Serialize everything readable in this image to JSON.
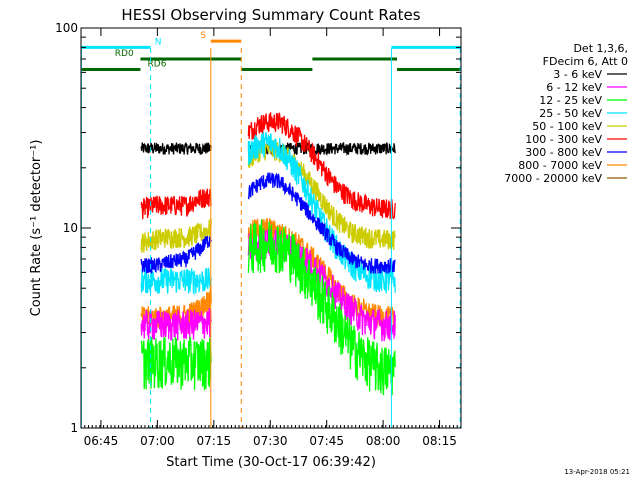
{
  "chart_data": {
    "type": "line",
    "title": "HESSI Observing Summary Count Rates",
    "xlabel": "Start Time (30-Oct-17 06:39:42)",
    "ylabel": "Count Rate (s⁻¹ detector⁻¹)",
    "yscale": "log",
    "ylim": [
      1,
      100
    ],
    "xlim_minutes": [
      0,
      101
    ],
    "x_ticks": [
      {
        "label": "06:45",
        "minute": 5.3
      },
      {
        "label": "07:00",
        "minute": 20.3
      },
      {
        "label": "07:15",
        "minute": 35.3
      },
      {
        "label": "07:30",
        "minute": 50.3
      },
      {
        "label": "07:45",
        "minute": 65.3
      },
      {
        "label": "08:00",
        "minute": 80.3
      },
      {
        "label": "08:15",
        "minute": 95.3
      }
    ],
    "y_ticks": [
      {
        "label": "1",
        "value": 1
      },
      {
        "label": "10",
        "value": 10
      },
      {
        "label": "100",
        "value": 100
      }
    ],
    "legend": {
      "placement": "right",
      "header": [
        "Det 1,3,6,",
        "FDecim 6, Att 0"
      ],
      "entries": [
        {
          "label": "3 - 6 keV",
          "color": "#000000"
        },
        {
          "label": "6 - 12 keV",
          "color": "#ff00ff"
        },
        {
          "label": "12 - 25 keV",
          "color": "#00ff00"
        },
        {
          "label": "25 - 50 keV",
          "color": "#00e5ff"
        },
        {
          "label": "50 - 100 keV",
          "color": "#cccc00"
        },
        {
          "label": "100 - 300 keV",
          "color": "#ff0000"
        },
        {
          "label": "300 - 800 keV",
          "color": "#0000ff"
        },
        {
          "label": "800 - 7000 keV",
          "color": "#ff8800"
        },
        {
          "label": "7000 - 20000 keV",
          "color": "#8b5a00"
        }
      ]
    },
    "flag_bars": [
      {
        "label": "N",
        "color": "#00e5ff",
        "segments": [
          [
            0,
            18.5
          ],
          [
            82.5,
            101
          ]
        ],
        "level": 80,
        "label_minute": 20.5
      },
      {
        "label": "RD0",
        "color": "#006600",
        "segments": [
          [
            15.8,
            42.7
          ],
          [
            61.5,
            84
          ]
        ],
        "level": 70,
        "label_minute": 11.5
      },
      {
        "label": "RD6",
        "color": "#006600",
        "segments": [
          [
            0,
            15.8
          ],
          [
            42.7,
            61.5
          ],
          [
            84,
            101
          ]
        ],
        "level": 62,
        "label_minute": 20.2
      },
      {
        "label": "S",
        "color": "#ff8800",
        "segments": [
          [
            34.5,
            42.6
          ]
        ],
        "level": 86,
        "label_minute": 32.5
      }
    ],
    "vertical_markers": [
      {
        "minute": 0.1,
        "color": "#00e5ff",
        "style": "solid"
      },
      {
        "minute": 18.5,
        "color": "#00e5ff",
        "style": "dashed"
      },
      {
        "minute": 34.5,
        "color": "#ff8800",
        "style": "solid"
      },
      {
        "minute": 42.6,
        "color": "#ff8800",
        "style": "dashed"
      },
      {
        "minute": 82.5,
        "color": "#00e5ff",
        "style": "solid"
      },
      {
        "minute": 100.8,
        "color": "#00e5ff",
        "style": "dashed"
      }
    ],
    "gap_minutes": [
      34.6,
      44.5
    ],
    "series": [
      {
        "name": "3 - 6 keV",
        "color": "#000000",
        "noise": 0.07,
        "segments": [
          {
            "x": [
              16,
              20,
              25,
              30,
              34.6
            ],
            "y": [
              25,
              25,
              25,
              25,
              25
            ]
          },
          {
            "x": [
              44.5,
              50,
              60,
              70,
              80,
              83.5
            ],
            "y": [
              25,
              25,
              25,
              25,
              25,
              25
            ]
          }
        ]
      },
      {
        "name": "100 - 300 keV",
        "color": "#ff0000",
        "noise": 0.12,
        "segments": [
          {
            "x": [
              16,
              20,
              24,
              28,
              31,
              34.6
            ],
            "y": [
              12.5,
              13,
              13,
              13,
              14,
              14.5
            ]
          },
          {
            "x": [
              44.5,
              47,
              50,
              53,
              56,
              59,
              62,
              65,
              68,
              72,
              76,
              80,
              83.5
            ],
            "y": [
              30,
              33,
              34,
              34,
              31,
              27,
              23,
              19,
              16,
              14,
              13,
              12.5,
              12.5
            ]
          }
        ]
      },
      {
        "name": "50 - 100 keV",
        "color": "#cccc00",
        "noise": 0.12,
        "segments": [
          {
            "x": [
              16,
              22,
              28,
              32,
              34.6
            ],
            "y": [
              8.5,
              9,
              9,
              9.5,
              10
            ]
          },
          {
            "x": [
              44.5,
              47,
              50,
              53,
              56,
              59,
              62,
              65,
              68,
              72,
              76,
              80,
              83.5
            ],
            "y": [
              22,
              24,
              25,
              24,
              22,
              19,
              16,
              13,
              11,
              9.5,
              9,
              8.8,
              8.8
            ]
          }
        ]
      },
      {
        "name": "25 - 50 keV",
        "color": "#00e5ff",
        "noise": 0.15,
        "segments": [
          {
            "x": [
              16,
              22,
              28,
              34.6
            ],
            "y": [
              5.5,
              5.5,
              5.5,
              5.5
            ]
          },
          {
            "x": [
              44.5,
              47,
              50,
              53,
              56,
              59,
              62,
              65,
              68,
              72,
              76,
              80,
              83.5
            ],
            "y": [
              24,
              26,
              27,
              25,
              21,
              17,
              13,
              10,
              8,
              6.5,
              5.8,
              5.5,
              5.5
            ]
          }
        ]
      },
      {
        "name": "300 - 800 keV",
        "color": "#0000ff",
        "noise": 0.09,
        "segments": [
          {
            "x": [
              16,
              20,
              24,
              28,
              32,
              34.6
            ],
            "y": [
              6.5,
              6.5,
              6.8,
              7,
              8,
              9
            ]
          },
          {
            "x": [
              44.5,
              47,
              50,
              53,
              56,
              59,
              62,
              65,
              68,
              72,
              76,
              80,
              83.5
            ],
            "y": [
              15,
              16.5,
              17.5,
              17,
              15,
              13,
              11,
              9.5,
              8,
              7,
              6.5,
              6.5,
              6.5
            ]
          }
        ]
      },
      {
        "name": "800 - 7000 keV",
        "color": "#ff8800",
        "noise": 0.13,
        "segments": [
          {
            "x": [
              16,
              22,
              28,
              32,
              34.6
            ],
            "y": [
              3.6,
              3.6,
              3.7,
              4,
              4.6
            ]
          },
          {
            "x": [
              44.5,
              47,
              50,
              53,
              56,
              59,
              62,
              65,
              68,
              72,
              76,
              80,
              83.5
            ],
            "y": [
              9.5,
              10,
              10,
              9.5,
              8.8,
              8,
              7,
              6,
              5,
              4.2,
              3.8,
              3.6,
              3.6
            ]
          }
        ]
      },
      {
        "name": "6 - 12 keV",
        "color": "#ff00ff",
        "noise": 0.18,
        "segments": [
          {
            "x": [
              16,
              22,
              28,
              34.6
            ],
            "y": [
              3.3,
              3.3,
              3.3,
              3.4
            ]
          },
          {
            "x": [
              44.5,
              50,
              55,
              60,
              65,
              70,
              75,
              80,
              83.5
            ],
            "y": [
              8,
              8.5,
              8,
              7,
              5.5,
              4.2,
              3.5,
              3.3,
              3.3
            ]
          }
        ]
      },
      {
        "name": "12 - 25 keV",
        "color": "#00ff00",
        "noise": 0.3,
        "segments": [
          {
            "x": [
              16,
              22,
              28,
              34.6
            ],
            "y": [
              2.2,
              2.2,
              2.2,
              2.2
            ]
          },
          {
            "x": [
              44.5,
              48,
              52,
              56,
              60,
              64,
              68,
              72,
              76,
              80,
              83.5
            ],
            "y": [
              8,
              8.5,
              8.5,
              7.5,
              6,
              4.5,
              3.5,
              2.6,
              2.2,
              2,
              2
            ]
          }
        ]
      }
    ]
  },
  "footer_date": "13-Apr-2018 05:21"
}
